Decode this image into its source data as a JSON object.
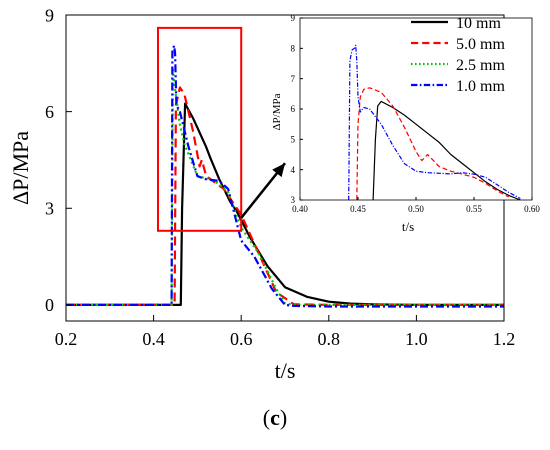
{
  "chart_data": [
    {
      "type": "line",
      "xlabel": "t/s",
      "ylabel": "ΔP/MPa",
      "xlim": [
        0.2,
        1.2
      ],
      "ylim": [
        -0.5,
        9
      ],
      "x_ticks": [
        0.2,
        0.4,
        0.6,
        0.8,
        1.0,
        1.2
      ],
      "x_tick_labels": [
        "0.2",
        "0.4",
        "0.6",
        "0.8",
        "1.0",
        "1.2"
      ],
      "y_ticks": [
        0,
        3,
        6,
        9
      ],
      "y_tick_labels": [
        "0",
        "3",
        "6",
        "9"
      ],
      "grid": false,
      "legend_position": "top-right",
      "series": [
        {
          "name": "10 mm",
          "color": "#000000",
          "dash": "solid",
          "x": [
            0.2,
            0.462,
            0.465,
            0.472,
            0.49,
            0.5,
            0.52,
            0.53,
            0.55,
            0.575,
            0.59,
            0.62,
            0.66,
            0.7,
            0.75,
            0.8,
            0.85,
            0.9,
            1.0,
            1.2
          ],
          "y": [
            0,
            0,
            3.0,
            6.25,
            5.8,
            5.5,
            4.9,
            4.55,
            3.9,
            3.2,
            2.9,
            2.1,
            1.2,
            0.55,
            0.25,
            0.1,
            0.04,
            0.02,
            0.0,
            0.0
          ]
        },
        {
          "name": "5.0 mm",
          "color": "#ff0000",
          "dash": "dashed",
          "x": [
            0.2,
            0.448,
            0.451,
            0.46,
            0.47,
            0.49,
            0.505,
            0.51,
            0.52,
            0.54,
            0.56,
            0.58,
            0.6,
            0.64,
            0.68,
            0.72,
            0.8,
            1.2
          ],
          "y": [
            0,
            0,
            6.2,
            6.75,
            6.55,
            5.4,
            4.3,
            4.5,
            4.0,
            3.8,
            3.6,
            3.2,
            2.8,
            1.6,
            0.4,
            0.02,
            0.0,
            0.0
          ]
        },
        {
          "name": "2.5 mm",
          "color": "#00cc00",
          "dash": "dotted",
          "x": [
            0.2,
            0.441,
            0.444,
            0.45,
            0.46,
            0.47,
            0.5,
            0.53,
            0.55,
            0.57,
            0.6,
            0.64,
            0.68,
            0.7,
            0.72,
            0.8,
            1.2
          ],
          "y": [
            0,
            0,
            7.3,
            6.6,
            5.6,
            5.0,
            4.0,
            3.9,
            3.75,
            3.5,
            2.4,
            1.6,
            0.5,
            0.05,
            0.0,
            0.0,
            0.0
          ]
        },
        {
          "name": "1.0 mm",
          "color": "#0000ff",
          "dash": "dashdot",
          "x": [
            0.2,
            0.441,
            0.443,
            0.447,
            0.449,
            0.452,
            0.46,
            0.48,
            0.5,
            0.52,
            0.55,
            0.57,
            0.6,
            0.63,
            0.67,
            0.7,
            0.72,
            0.8,
            1.2
          ],
          "y": [
            0,
            0,
            7.9,
            8.05,
            7.8,
            6.2,
            6.0,
            4.9,
            4.0,
            3.9,
            3.85,
            3.6,
            2.0,
            1.5,
            0.5,
            0.0,
            -0.03,
            -0.05,
            -0.05
          ]
        }
      ],
      "annotations": [
        {
          "type": "rectangle",
          "color": "#ff0000",
          "x_range": [
            0.41,
            0.6
          ],
          "y_range": [
            2.3,
            8.6
          ]
        },
        {
          "type": "arrow",
          "color": "#000000",
          "from": [
            0.6,
            2.7
          ],
          "to": [
            0.7,
            4.4
          ]
        }
      ]
    },
    {
      "type": "line",
      "role": "inset",
      "xlabel": "t/s",
      "ylabel": "ΔP/MPa",
      "xlim": [
        0.4,
        0.6
      ],
      "ylim": [
        3,
        9
      ],
      "x_ticks": [
        0.4,
        0.45,
        0.5,
        0.55,
        0.6
      ],
      "x_tick_labels": [
        "0.40",
        "0.45",
        "0.50",
        "0.55",
        "0.60"
      ],
      "y_ticks": [
        3,
        4,
        5,
        6,
        7,
        8,
        9
      ],
      "y_tick_labels": [
        "3",
        "4",
        "5",
        "6",
        "7",
        "8",
        "9"
      ],
      "grid": false,
      "series": [
        {
          "name": "10 mm",
          "color": "#000000",
          "dash": "solid",
          "x": [
            0.463,
            0.465,
            0.467,
            0.47,
            0.48,
            0.49,
            0.5,
            0.51,
            0.52,
            0.53,
            0.54,
            0.55,
            0.56,
            0.57,
            0.58,
            0.59
          ],
          "y": [
            3.0,
            5.0,
            6.1,
            6.25,
            6.05,
            5.8,
            5.5,
            5.2,
            4.9,
            4.5,
            4.2,
            3.9,
            3.6,
            3.35,
            3.15,
            3.0
          ]
        },
        {
          "name": "5.0 mm",
          "color": "#ff0000",
          "dash": "dashed",
          "x": [
            0.449,
            0.45,
            0.452,
            0.455,
            0.46,
            0.47,
            0.48,
            0.49,
            0.5,
            0.505,
            0.51,
            0.52,
            0.53,
            0.54,
            0.55,
            0.56,
            0.57,
            0.58
          ],
          "y": [
            3.0,
            5.5,
            6.4,
            6.65,
            6.7,
            6.55,
            6.1,
            5.4,
            4.6,
            4.3,
            4.5,
            4.1,
            3.95,
            3.85,
            3.75,
            3.55,
            3.3,
            3.1
          ]
        },
        {
          "name": "1.0 mm",
          "color": "#0000ff",
          "dash": "dashdot",
          "x": [
            0.442,
            0.443,
            0.445,
            0.447,
            0.448,
            0.449,
            0.45,
            0.452,
            0.455,
            0.46,
            0.47,
            0.48,
            0.49,
            0.5,
            0.51,
            0.52,
            0.53,
            0.54,
            0.55,
            0.56,
            0.57,
            0.58,
            0.59
          ],
          "y": [
            3.0,
            7.6,
            7.95,
            8.0,
            8.1,
            7.6,
            6.4,
            5.9,
            6.05,
            6.0,
            5.5,
            4.8,
            4.2,
            3.95,
            3.9,
            3.88,
            3.86,
            3.9,
            3.85,
            3.75,
            3.5,
            3.25,
            3.05
          ]
        }
      ]
    }
  ],
  "caption": {
    "open": "(",
    "letter": "c",
    "close": ")"
  }
}
